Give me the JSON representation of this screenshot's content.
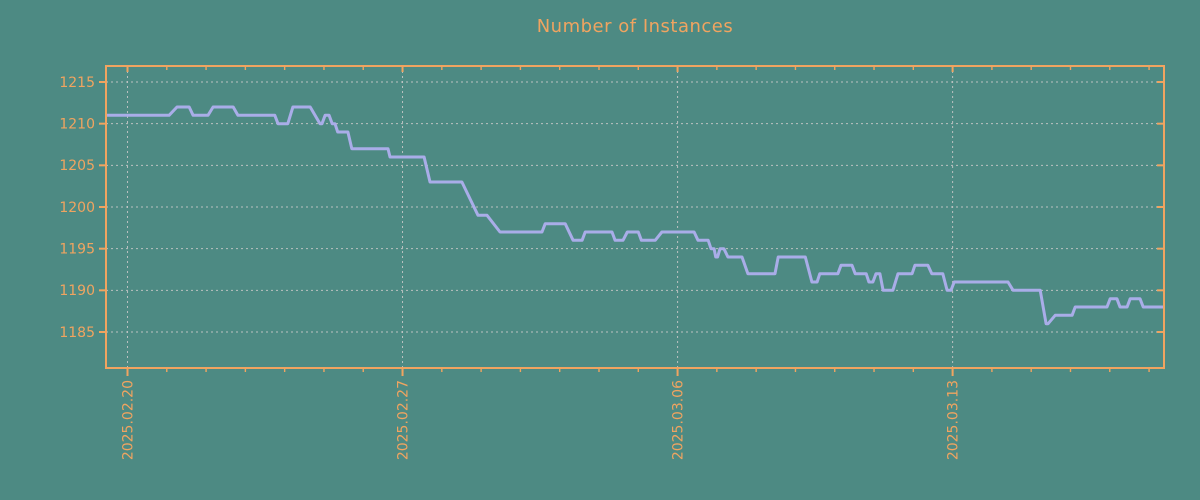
{
  "chart_data": {
    "type": "line",
    "title": "Number of Instances",
    "x_unit": "days since 2025-02-20",
    "xlim": [
      -0.547,
      26.38
    ],
    "ylim": [
      1180.68,
      1216.92
    ],
    "y_ticks": [
      1185,
      1190,
      1195,
      1200,
      1205,
      1210,
      1215
    ],
    "x_major_ticks": [
      {
        "t": 0,
        "label": "2025.02.20"
      },
      {
        "t": 7,
        "label": "2025.02.27"
      },
      {
        "t": 14,
        "label": "2025.03.06"
      },
      {
        "t": 21,
        "label": "2025.03.13"
      }
    ],
    "x_minor_ticks": [
      0,
      1,
      2,
      3,
      4,
      5,
      6,
      7,
      8,
      9,
      10,
      11,
      12,
      13,
      14,
      15,
      16,
      17,
      18,
      19,
      20,
      21,
      22,
      23,
      24,
      25,
      26
    ],
    "grid": {
      "horizontal": true,
      "vertical_at_major": true,
      "style": "dotted"
    },
    "legend": "none",
    "series": [
      {
        "name": "instances",
        "points": [
          [
            -0.55,
            1211
          ],
          [
            1.06,
            1211
          ],
          [
            1.26,
            1212
          ],
          [
            1.57,
            1212
          ],
          [
            1.67,
            1211
          ],
          [
            2.05,
            1211
          ],
          [
            2.18,
            1212
          ],
          [
            2.69,
            1212
          ],
          [
            2.81,
            1211
          ],
          [
            3.75,
            1211
          ],
          [
            3.83,
            1210
          ],
          [
            4.08,
            1210
          ],
          [
            4.21,
            1212
          ],
          [
            4.65,
            1212
          ],
          [
            4.9,
            1210
          ],
          [
            4.95,
            1210
          ],
          [
            5.03,
            1211
          ],
          [
            5.13,
            1211
          ],
          [
            5.21,
            1210
          ],
          [
            5.28,
            1210
          ],
          [
            5.35,
            1209
          ],
          [
            5.61,
            1209
          ],
          [
            5.71,
            1207
          ],
          [
            6.63,
            1207
          ],
          [
            6.68,
            1206
          ],
          [
            7.55,
            1206
          ],
          [
            7.7,
            1203
          ],
          [
            8.51,
            1203
          ],
          [
            8.92,
            1199
          ],
          [
            9.15,
            1199
          ],
          [
            9.48,
            1197
          ],
          [
            10.55,
            1197
          ],
          [
            10.63,
            1198
          ],
          [
            11.14,
            1198
          ],
          [
            11.34,
            1196
          ],
          [
            11.57,
            1196
          ],
          [
            11.65,
            1197
          ],
          [
            12.33,
            1197
          ],
          [
            12.41,
            1196
          ],
          [
            12.61,
            1196
          ],
          [
            12.72,
            1197
          ],
          [
            13.0,
            1197
          ],
          [
            13.08,
            1196
          ],
          [
            13.43,
            1196
          ],
          [
            13.6,
            1197
          ],
          [
            14.42,
            1197
          ],
          [
            14.52,
            1196
          ],
          [
            14.78,
            1196
          ],
          [
            14.85,
            1195
          ],
          [
            14.93,
            1195
          ],
          [
            14.97,
            1194
          ],
          [
            15.02,
            1194
          ],
          [
            15.08,
            1195
          ],
          [
            15.18,
            1195
          ],
          [
            15.28,
            1194
          ],
          [
            15.64,
            1194
          ],
          [
            15.79,
            1192
          ],
          [
            16.48,
            1192
          ],
          [
            16.56,
            1194
          ],
          [
            17.25,
            1194
          ],
          [
            17.42,
            1191
          ],
          [
            17.55,
            1191
          ],
          [
            17.62,
            1192
          ],
          [
            18.08,
            1192
          ],
          [
            18.16,
            1193
          ],
          [
            18.44,
            1193
          ],
          [
            18.52,
            1192
          ],
          [
            18.8,
            1192
          ],
          [
            18.87,
            1191
          ],
          [
            18.97,
            1191
          ],
          [
            19.05,
            1192
          ],
          [
            19.15,
            1192
          ],
          [
            19.23,
            1190
          ],
          [
            19.48,
            1190
          ],
          [
            19.61,
            1192
          ],
          [
            19.97,
            1192
          ],
          [
            20.04,
            1193
          ],
          [
            20.37,
            1193
          ],
          [
            20.47,
            1192
          ],
          [
            20.75,
            1192
          ],
          [
            20.86,
            1190
          ],
          [
            20.96,
            1190
          ],
          [
            21.04,
            1191
          ],
          [
            22.41,
            1191
          ],
          [
            22.54,
            1190
          ],
          [
            23.23,
            1190
          ],
          [
            23.38,
            1186
          ],
          [
            23.43,
            1186
          ],
          [
            23.61,
            1187
          ],
          [
            24.04,
            1187
          ],
          [
            24.12,
            1188
          ],
          [
            24.93,
            1188
          ],
          [
            25.01,
            1189
          ],
          [
            25.18,
            1189
          ],
          [
            25.26,
            1188
          ],
          [
            25.44,
            1188
          ],
          [
            25.52,
            1189
          ],
          [
            25.77,
            1189
          ],
          [
            25.85,
            1188
          ],
          [
            26.38,
            1188
          ]
        ]
      }
    ],
    "colors": {
      "background": "#4d8a83",
      "axis": "#f0a460",
      "title": "#f0a460",
      "tick_label": "#f0a460",
      "line": "#a9ade8",
      "grid": "#c8c8c8"
    }
  }
}
